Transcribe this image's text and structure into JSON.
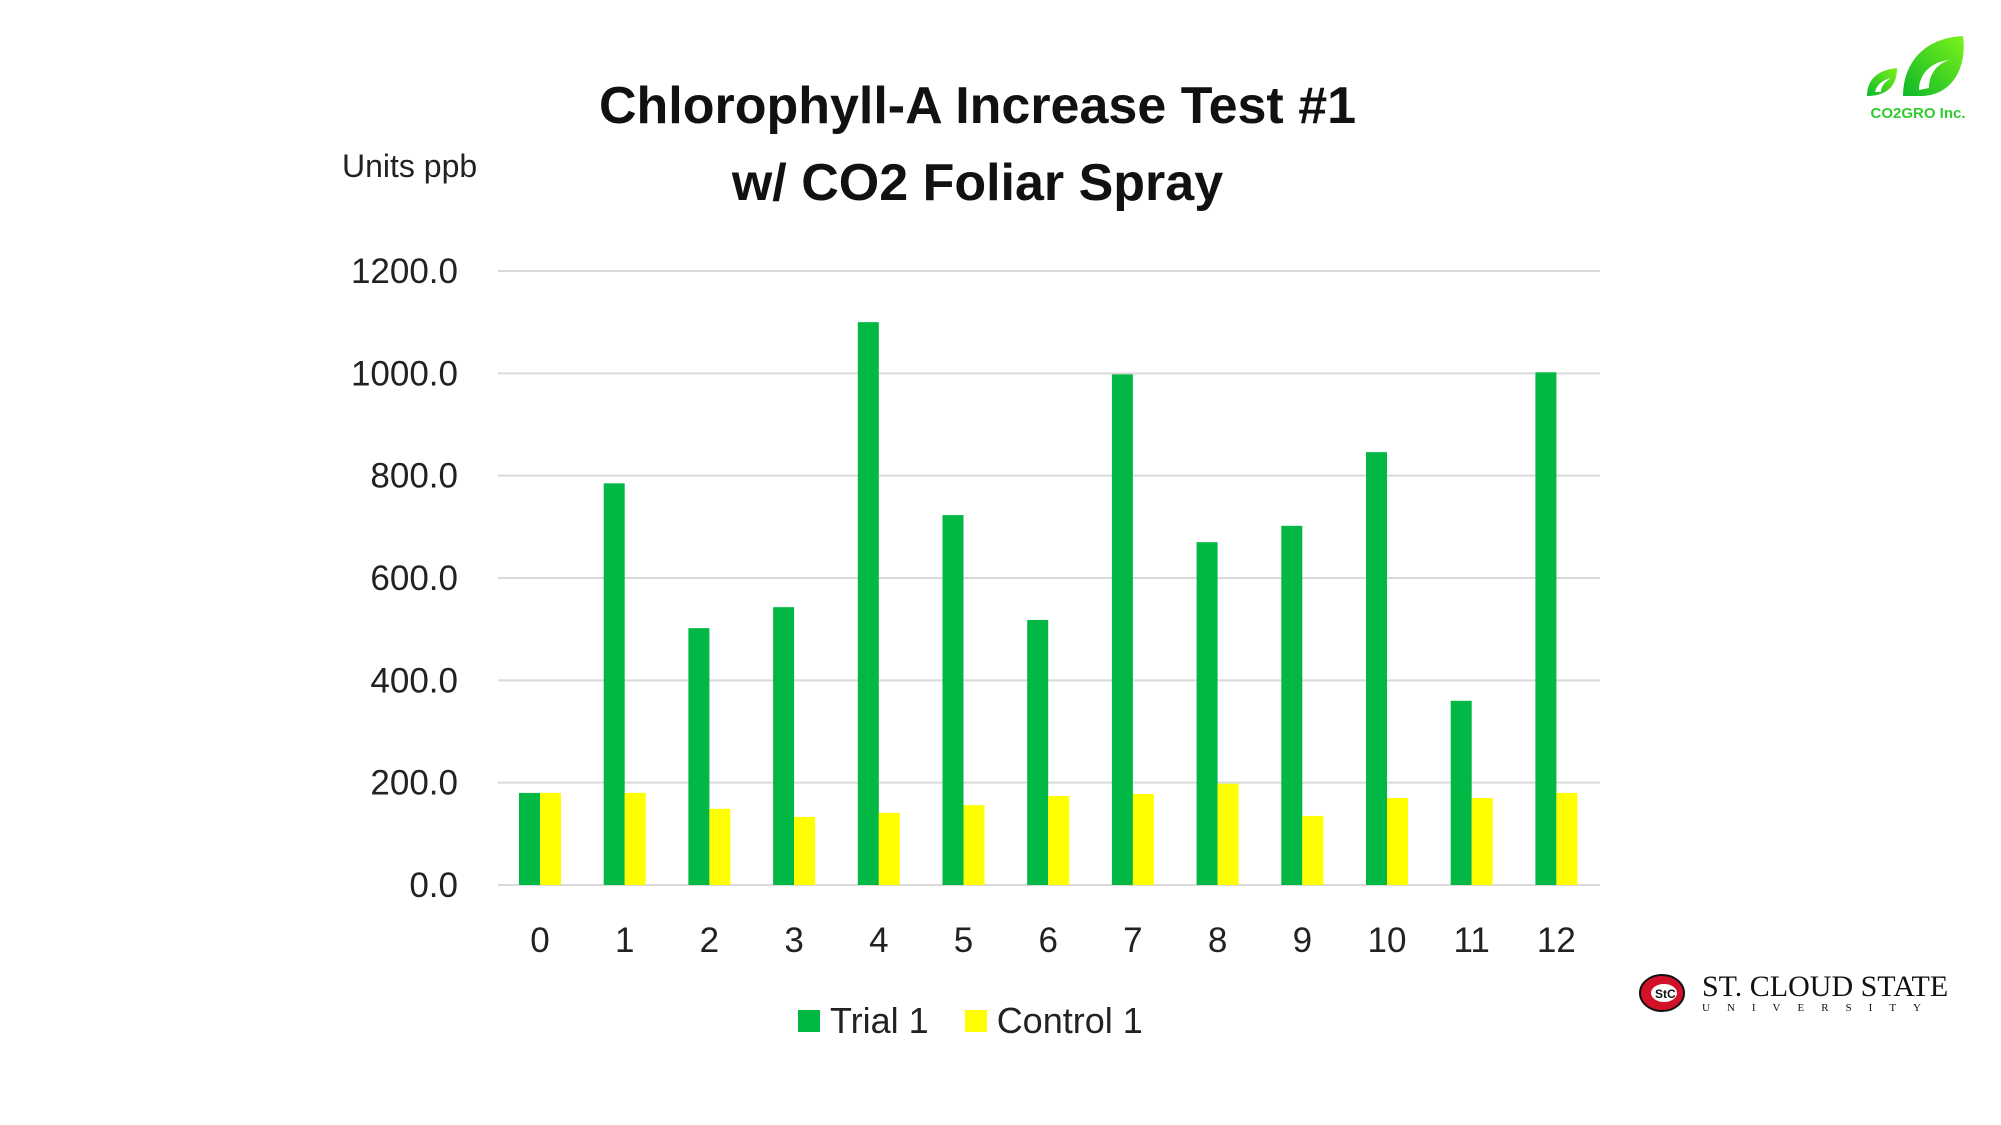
{
  "chart_data": {
    "type": "bar",
    "title": [
      "Chlorophyll-A Increase Test #1",
      "w/ CO2 Foliar Spray"
    ],
    "ylabel": "Units ppb",
    "xlabel": "",
    "categories": [
      "0",
      "1",
      "2",
      "3",
      "4",
      "5",
      "6",
      "7",
      "8",
      "9",
      "10",
      "11",
      "12"
    ],
    "series": [
      {
        "name": "Trial 1",
        "color": "#00b843",
        "values": [
          180,
          785,
          502,
          543,
          1100,
          723,
          518,
          998,
          670,
          702,
          846,
          360,
          1002
        ]
      },
      {
        "name": "Control 1",
        "color": "#ffff00",
        "values": [
          180,
          180,
          149,
          133,
          141,
          156,
          174,
          178,
          198,
          135,
          170,
          170,
          180
        ]
      }
    ],
    "ylim": [
      0,
      1200
    ],
    "yticks": [
      "0.0",
      "200.0",
      "400.0",
      "600.0",
      "800.0",
      "1000.0",
      "1200.0"
    ],
    "grid": true,
    "legend_position": "bottom"
  },
  "logos": {
    "co2gro": "CO2GRO Inc.",
    "scsu_name": "ST. CLOUD STATE",
    "scsu_sub": "UNIVERSITY"
  }
}
